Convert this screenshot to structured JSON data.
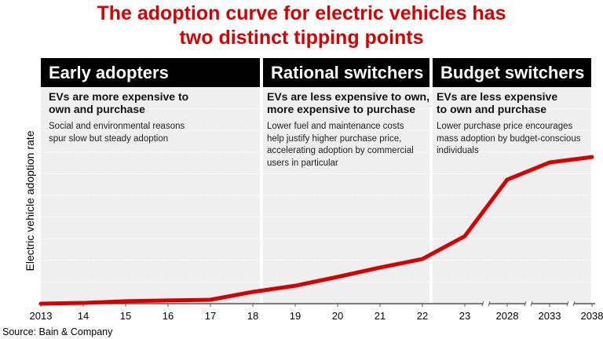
{
  "title_lines": [
    "The adoption curve for electric vehicles has",
    "two distinct tipping points"
  ],
  "phases": [
    {
      "title": "Early adopters",
      "headline_lines": [
        "EVs are more expensive to",
        "own and purchase"
      ],
      "description_lines": [
        "Social and environmental reasons",
        "spur slow but steady adoption"
      ]
    },
    {
      "title": "Rational switchers",
      "headline_lines": [
        "EVs are less expensive to own,",
        "more expensive to purchase"
      ],
      "description_lines": [
        "Lower fuel and maintenance costs",
        "help justify higher purchase price,",
        "accelerating adoption by commercial",
        "users in particular"
      ]
    },
    {
      "title": "Budget switchers",
      "headline_lines": [
        "EVs are less expensive",
        "to own and purchase"
      ],
      "description_lines": [
        "Lower purchase price encourages",
        "mass adoption by budget-conscious",
        "individuals"
      ]
    }
  ],
  "source": "Source: Bain & Company",
  "chart_data": {
    "type": "line",
    "ylabel": "Electric vehicle adoption rate",
    "xlabel": "",
    "x": [
      "2013",
      "14",
      "15",
      "16",
      "17",
      "18",
      "19",
      "20",
      "21",
      "22",
      "23",
      "2028",
      "2033",
      "2038"
    ],
    "series": [
      {
        "values": [
          0,
          0.3,
          1,
          1.3,
          1.6,
          4.8,
          7.3,
          10.9,
          14.7,
          18.2,
          27.5,
          50.5,
          57.5,
          59.7
        ]
      }
    ],
    "ylim": [
      0,
      100
    ],
    "y_ticks_shown": false,
    "axis_breaks_after": [
      "23",
      "2028",
      "2033"
    ],
    "grid": true,
    "line_color": "#d60000"
  }
}
